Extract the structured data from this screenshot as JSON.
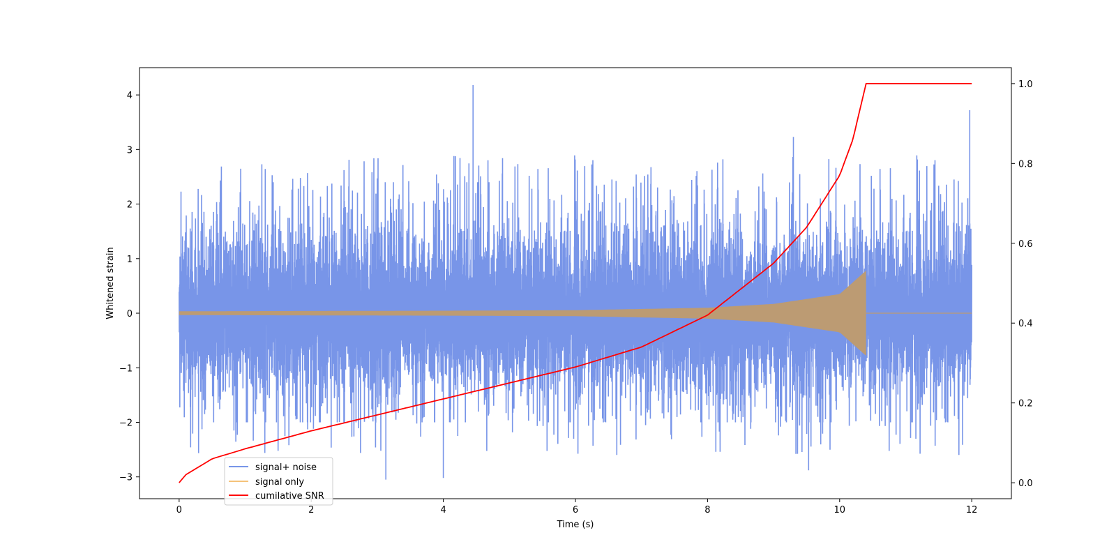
{
  "chart_data": {
    "type": "line",
    "title": "",
    "xlabel": "Time (s)",
    "ylabel": "Whitened strain",
    "y2label": "",
    "xlim": [
      -0.6,
      12.6
    ],
    "ylim": [
      -3.4,
      4.5
    ],
    "y2lim": [
      -0.04,
      1.04
    ],
    "x_ticks": [
      0,
      2,
      4,
      6,
      8,
      10,
      12
    ],
    "y_ticks": [
      -3,
      -2,
      -1,
      0,
      1,
      2,
      3,
      4
    ],
    "y2_ticks": [
      0.0,
      0.2,
      0.4,
      0.6,
      0.8,
      1.0
    ],
    "x_tick_labels": [
      "0",
      "2",
      "4",
      "6",
      "8",
      "10",
      "12"
    ],
    "y_tick_labels": [
      "−3",
      "−2",
      "−1",
      "0",
      "1",
      "2",
      "3",
      "4"
    ],
    "y2_tick_labels": [
      "0.0",
      "0.2",
      "0.4",
      "0.6",
      "0.8",
      "1.0"
    ],
    "grid": false,
    "legend_position": "lower-left",
    "merger_time": 10.4,
    "series": [
      {
        "name": "signal+ noise",
        "color": "#7895e8",
        "axis": "left",
        "x_range": [
          0,
          12
        ],
        "typical_envelope": [
          -1.7,
          2.1
        ],
        "extreme_peaks": [
          {
            "x": 4.45,
            "y": 4.18
          },
          {
            "x": 11.97,
            "y": 3.72
          },
          {
            "x": 9.3,
            "y": 3.23
          },
          {
            "x": 3.13,
            "y": -3.05
          },
          {
            "x": 4.0,
            "y": -3.02
          },
          {
            "x": 9.53,
            "y": -2.88
          }
        ]
      },
      {
        "name": "signal only",
        "color": "#f5c27a",
        "axis": "left",
        "amplitude": {
          "x": [
            0,
            2,
            4,
            6,
            8,
            9,
            10,
            10.4,
            10.41,
            12
          ],
          "y": [
            0.035,
            0.04,
            0.045,
            0.055,
            0.1,
            0.17,
            0.35,
            0.78,
            0.0,
            0.0
          ]
        }
      },
      {
        "name": "cumilative SNR",
        "color": "#ff0000",
        "axis": "right",
        "x": [
          0,
          0.1,
          0.5,
          1,
          2,
          3,
          4,
          5,
          6,
          7,
          8,
          9,
          9.5,
          10,
          10.2,
          10.4,
          12
        ],
        "y": [
          0.0,
          0.02,
          0.06,
          0.085,
          0.13,
          0.17,
          0.21,
          0.25,
          0.29,
          0.34,
          0.42,
          0.55,
          0.64,
          0.77,
          0.86,
          1.0,
          1.0
        ]
      }
    ]
  }
}
